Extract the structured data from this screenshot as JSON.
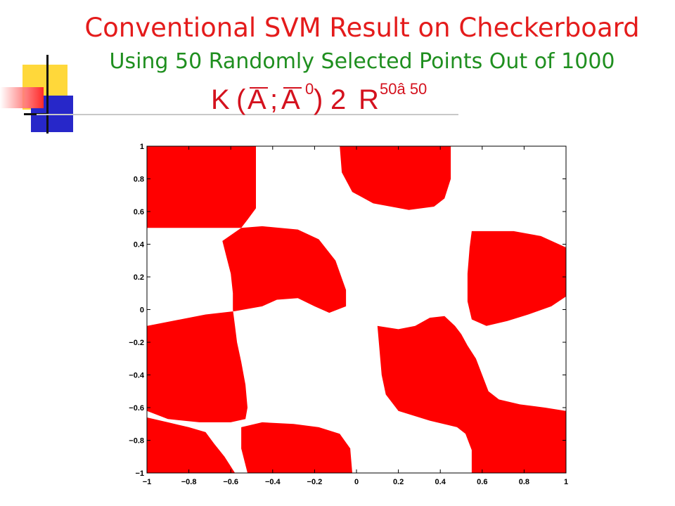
{
  "slide": {
    "title": "Conventional SVM Result on Checkerboard",
    "subtitle": "Using 50 Randomly Selected Points Out of 1000",
    "title_color": "#e41b1b",
    "subtitle_color": "#1f8f1f",
    "formula": {
      "K": "K",
      "open_paren": "(",
      "A1": "A",
      "semicolon": ";",
      "A2": "A",
      "prime": "0",
      "close_paren": ")",
      "two": "2",
      "R": "R",
      "sup": "50â 50"
    }
  },
  "chart_data": {
    "type": "heatmap",
    "title": "",
    "xlabel": "",
    "ylabel": "",
    "xlim": [
      -1,
      1
    ],
    "ylim": [
      -1,
      1
    ],
    "grid": false,
    "legend": "none",
    "fill_color": "#ff0000",
    "background_color": "#ffffff",
    "x_ticks": [
      {
        "value": -1,
        "label": "−1"
      },
      {
        "value": -0.8,
        "label": "−0.8"
      },
      {
        "value": -0.6,
        "label": "−0.6"
      },
      {
        "value": -0.4,
        "label": "−0.4"
      },
      {
        "value": -0.2,
        "label": "−0.2"
      },
      {
        "value": 0,
        "label": "0"
      },
      {
        "value": 0.2,
        "label": "0.2"
      },
      {
        "value": 0.4,
        "label": "0.4"
      },
      {
        "value": 0.6,
        "label": "0.6"
      },
      {
        "value": 0.8,
        "label": "0.8"
      },
      {
        "value": 1,
        "label": "1"
      }
    ],
    "y_ticks": [
      {
        "value": 1,
        "label": "1"
      },
      {
        "value": 0.8,
        "label": "0.8"
      },
      {
        "value": 0.6,
        "label": "0.6"
      },
      {
        "value": 0.4,
        "label": "0.4"
      },
      {
        "value": 0.2,
        "label": "0.2"
      },
      {
        "value": 0,
        "label": "0"
      },
      {
        "value": -0.2,
        "label": "−0.2"
      },
      {
        "value": -0.4,
        "label": "−0.4"
      },
      {
        "value": -0.6,
        "label": "−0.6"
      },
      {
        "value": -0.8,
        "label": "−0.8"
      },
      {
        "value": -1,
        "label": "−1"
      }
    ],
    "regions": [
      {
        "name": "region-top-left",
        "points": [
          [
            -1,
            1
          ],
          [
            -0.48,
            1
          ],
          [
            -0.48,
            0.62
          ],
          [
            -0.52,
            0.55
          ],
          [
            -0.55,
            0.5
          ],
          [
            -1,
            0.5
          ]
        ]
      },
      {
        "name": "region-top-center",
        "points": [
          [
            -0.08,
            1
          ],
          [
            0.45,
            1
          ],
          [
            0.45,
            0.8
          ],
          [
            0.42,
            0.68
          ],
          [
            0.37,
            0.63
          ],
          [
            0.25,
            0.61
          ],
          [
            0.08,
            0.65
          ],
          [
            -0.02,
            0.72
          ],
          [
            -0.07,
            0.84
          ]
        ]
      },
      {
        "name": "region-center-left",
        "points": [
          [
            -0.55,
            0.5
          ],
          [
            -0.45,
            0.51
          ],
          [
            -0.28,
            0.49
          ],
          [
            -0.18,
            0.43
          ],
          [
            -0.1,
            0.3
          ],
          [
            -0.05,
            0.12
          ],
          [
            -0.05,
            0.02
          ],
          [
            -0.13,
            -0.02
          ],
          [
            -0.2,
            0.02
          ],
          [
            -0.28,
            0.07
          ],
          [
            -0.38,
            0.06
          ],
          [
            -0.45,
            0.02
          ],
          [
            -0.58,
            -0.01
          ],
          [
            -0.72,
            -0.03
          ],
          [
            -0.88,
            -0.07
          ],
          [
            -1,
            -0.1
          ],
          [
            -1,
            -0.62
          ],
          [
            -0.9,
            -0.67
          ],
          [
            -0.75,
            -0.69
          ],
          [
            -0.6,
            -0.69
          ],
          [
            -0.53,
            -0.67
          ],
          [
            -0.52,
            -0.6
          ],
          [
            -0.53,
            -0.46
          ],
          [
            -0.55,
            -0.32
          ],
          [
            -0.57,
            -0.2
          ],
          [
            -0.58,
            -0.1
          ],
          [
            -0.59,
            0
          ],
          [
            -0.59,
            0.1
          ],
          [
            -0.6,
            0.22
          ],
          [
            -0.62,
            0.32
          ],
          [
            -0.64,
            0.42
          ]
        ]
      },
      {
        "name": "region-right-upper",
        "points": [
          [
            0.55,
            0.48
          ],
          [
            0.75,
            0.48
          ],
          [
            0.88,
            0.45
          ],
          [
            1,
            0.38
          ],
          [
            1,
            0.08
          ],
          [
            0.93,
            0.02
          ],
          [
            0.82,
            -0.03
          ],
          [
            0.72,
            -0.07
          ],
          [
            0.62,
            -0.1
          ],
          [
            0.55,
            -0.06
          ],
          [
            0.53,
            0.05
          ],
          [
            0.53,
            0.22
          ],
          [
            0.54,
            0.38
          ]
        ]
      },
      {
        "name": "region-center-right",
        "points": [
          [
            0.1,
            -0.1
          ],
          [
            0.2,
            -0.12
          ],
          [
            0.28,
            -0.1
          ],
          [
            0.35,
            -0.05
          ],
          [
            0.42,
            -0.04
          ],
          [
            0.47,
            -0.1
          ],
          [
            0.5,
            -0.15
          ],
          [
            0.53,
            -0.22
          ],
          [
            0.57,
            -0.3
          ],
          [
            0.6,
            -0.4
          ],
          [
            0.63,
            -0.5
          ],
          [
            0.68,
            -0.55
          ],
          [
            0.78,
            -0.58
          ],
          [
            0.9,
            -0.6
          ],
          [
            1,
            -0.62
          ],
          [
            1,
            -1
          ],
          [
            0.55,
            -1
          ],
          [
            0.55,
            -0.86
          ],
          [
            0.52,
            -0.76
          ],
          [
            0.48,
            -0.72
          ],
          [
            0.35,
            -0.68
          ],
          [
            0.2,
            -0.62
          ],
          [
            0.14,
            -0.52
          ],
          [
            0.12,
            -0.4
          ],
          [
            0.11,
            -0.25
          ]
        ]
      },
      {
        "name": "region-bottom-left",
        "points": [
          [
            -1,
            -0.66
          ],
          [
            -0.9,
            -0.69
          ],
          [
            -0.8,
            -0.72
          ],
          [
            -0.72,
            -0.75
          ],
          [
            -0.68,
            -0.82
          ],
          [
            -0.63,
            -0.9
          ],
          [
            -0.58,
            -1
          ],
          [
            -1,
            -1
          ]
        ]
      },
      {
        "name": "region-bottom-center",
        "points": [
          [
            -0.55,
            -0.72
          ],
          [
            -0.45,
            -0.69
          ],
          [
            -0.3,
            -0.7
          ],
          [
            -0.18,
            -0.72
          ],
          [
            -0.08,
            -0.76
          ],
          [
            -0.03,
            -0.85
          ],
          [
            -0.02,
            -1
          ],
          [
            -0.52,
            -1
          ],
          [
            -0.55,
            -0.85
          ]
        ]
      }
    ]
  }
}
